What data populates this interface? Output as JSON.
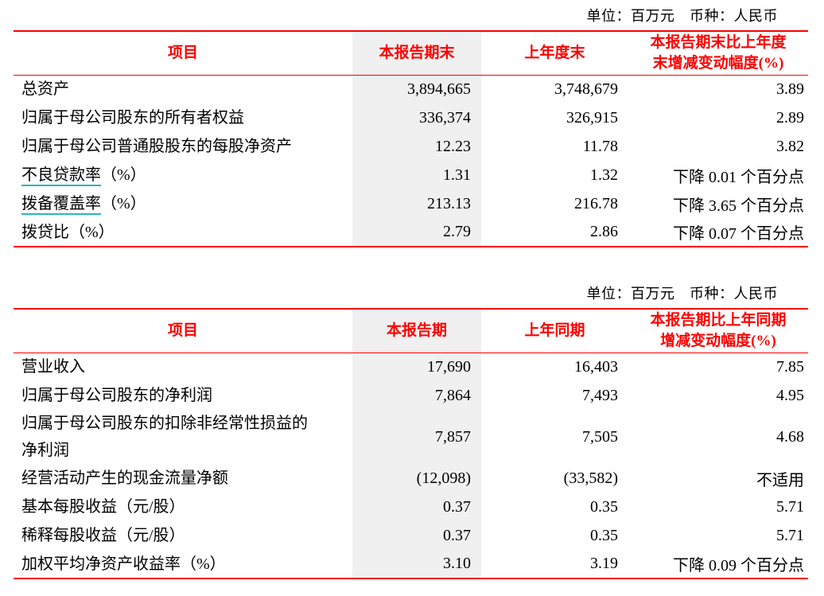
{
  "colors": {
    "accent_red": "#fe0000",
    "underline_teal": "#29b4c5",
    "column_shade": "#f0f0f0",
    "body_text": "#000000",
    "page_bg": "#ffffff"
  },
  "table1": {
    "unit_note": "单位：百万元　币种：人民币",
    "headers": {
      "item": "项目",
      "current": "本报告期末",
      "previous": "上年度末",
      "change": "本报告期末比上年度\n末增减变动幅度(%)"
    },
    "rows": [
      {
        "item": "总资产",
        "suffix": "",
        "underlined": false,
        "current": "3,894,665",
        "previous": "3,748,679",
        "change": "3.89"
      },
      {
        "item": "归属于母公司股东的所有者权益",
        "suffix": "",
        "underlined": false,
        "current": "336,374",
        "previous": "326,915",
        "change": "2.89"
      },
      {
        "item": "归属于母公司普通股股东的每股净资产",
        "suffix": "",
        "underlined": false,
        "current": "12.23",
        "previous": "11.78",
        "change": "3.82"
      },
      {
        "item": "不良贷款率",
        "suffix": "（%）",
        "underlined": true,
        "current": "1.31",
        "previous": "1.32",
        "change": "下降 0.01 个百分点"
      },
      {
        "item": "拨备覆盖率",
        "suffix": "（%）",
        "underlined": true,
        "current": "213.13",
        "previous": "216.78",
        "change": "下降 3.65 个百分点"
      },
      {
        "item": "拨贷比（%）",
        "suffix": "",
        "underlined": false,
        "current": "2.79",
        "previous": "2.86",
        "change": "下降 0.07 个百分点"
      }
    ]
  },
  "table2": {
    "unit_note": "单位：百万元　币种：人民币",
    "headers": {
      "item": "项目",
      "current": "本报告期",
      "previous": "上年同期",
      "change": "本报告期比上年同期\n增减变动幅度(%)"
    },
    "rows": [
      {
        "item": "营业收入",
        "suffix": "",
        "underlined": false,
        "current": "17,690",
        "previous": "16,403",
        "change": "7.85"
      },
      {
        "item": "归属于母公司股东的净利润",
        "suffix": "",
        "underlined": false,
        "current": "7,864",
        "previous": "7,493",
        "change": "4.95"
      },
      {
        "item": "归属于母公司股东的扣除非经常性损益的\n净利润",
        "suffix": "",
        "underlined": false,
        "current": "7,857",
        "previous": "7,505",
        "change": "4.68"
      },
      {
        "item": "经营活动产生的现金流量净额",
        "suffix": "",
        "underlined": false,
        "current": "(12,098)",
        "previous": "(33,582)",
        "change": "不适用"
      },
      {
        "item": "基本每股收益（元/股）",
        "suffix": "",
        "underlined": false,
        "current": "0.37",
        "previous": "0.35",
        "change": "5.71"
      },
      {
        "item": "稀释每股收益（元/股）",
        "suffix": "",
        "underlined": false,
        "current": "0.37",
        "previous": "0.35",
        "change": "5.71"
      },
      {
        "item": "加权平均净资产收益率（%）",
        "suffix": "",
        "underlined": false,
        "current": "3.10",
        "previous": "3.19",
        "change": "下降 0.09 个百分点"
      }
    ]
  }
}
